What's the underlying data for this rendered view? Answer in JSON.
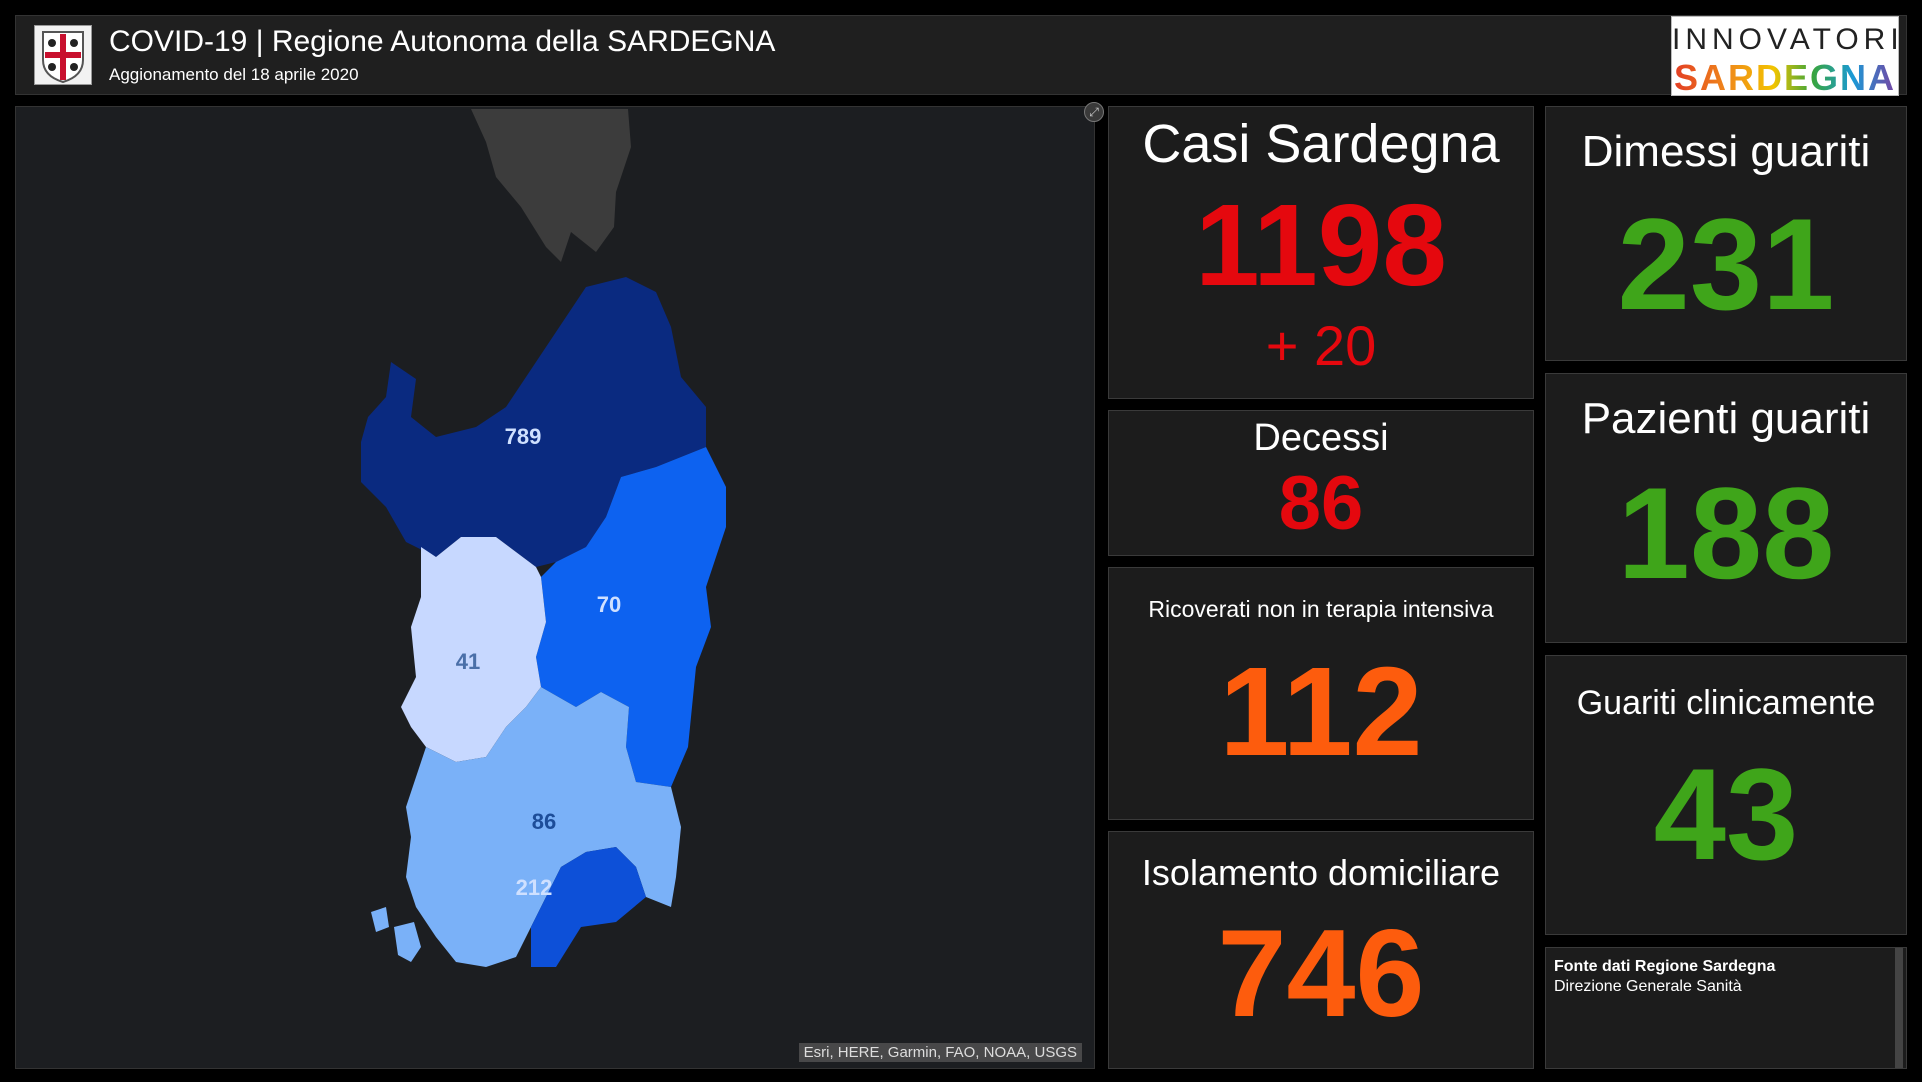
{
  "header": {
    "title": "COVID-19 | Regione Autonoma della SARDEGNA",
    "subtitle": "Aggionamento del 18 aprile 2020",
    "logo_top": "INNOVATORI",
    "logo_bottom": "SARDEGNA"
  },
  "map": {
    "attribution": "Esri, HERE, Garmin, FAO, NOAA, USGS",
    "region_labels": [
      "789",
      "70",
      "41",
      "86",
      "212"
    ],
    "colors": {
      "north": "#0a2a80",
      "east": "#0d62f0",
      "west": "#c7d8ff",
      "south": "#7ab1f8",
      "southeast": "#0d50d8"
    }
  },
  "cards": {
    "casi": {
      "label": "Casi Sardegna",
      "value": "1198",
      "delta": "+ 20"
    },
    "decessi": {
      "label": "Decessi",
      "value": "86"
    },
    "ricoverati": {
      "label": "Ricoverati non in terapia intensiva",
      "value": "112"
    },
    "isolamento": {
      "label": "Isolamento domiciliare",
      "value": "746"
    },
    "dimessi": {
      "label": "Dimessi guariti",
      "value": "231"
    },
    "pazienti": {
      "label": "Pazienti guariti",
      "value": "188"
    },
    "clinicamente": {
      "label": "Guariti clinicamente",
      "value": "43"
    }
  },
  "source": {
    "title": "Fonte dati Regione Sardegna",
    "subtitle": "Direzione Generale Sanità"
  }
}
